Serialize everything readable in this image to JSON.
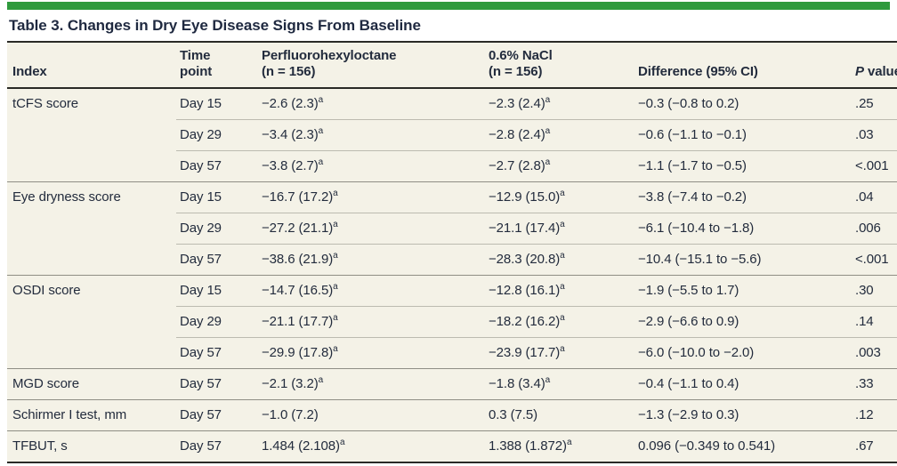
{
  "title": "Table 3. Changes in Dry Eye Disease Signs From Baseline",
  "colors": {
    "accent_green": "#2f9a3d",
    "table_background": "#f4f2e7",
    "dark_rule": "#2a2a26",
    "text": "#232c3d",
    "row_line": "#bcbbb0",
    "group_line": "#8f8e85"
  },
  "table": {
    "columns": [
      {
        "id": "index",
        "label": "Index"
      },
      {
        "id": "time",
        "label": "Time\npoint"
      },
      {
        "id": "pfho",
        "label": "Perfluorohexyloctane\n(n = 156)"
      },
      {
        "id": "nacl",
        "label": "0.6% NaCl\n(n = 156)"
      },
      {
        "id": "diff",
        "label": "Difference (95% CI)"
      },
      {
        "id": "p",
        "label": "P value",
        "italic_first": true
      }
    ],
    "rows": [
      {
        "group_start": true,
        "index": "tCFS score",
        "time": "Day 15",
        "pfho": "−2.6 (2.3)",
        "pfho_sup": "a",
        "nacl": "−2.3 (2.4)",
        "nacl_sup": "a",
        "diff": "−0.3 (−0.8 to 0.2)",
        "p": ".25"
      },
      {
        "group_start": false,
        "index": "",
        "time": "Day 29",
        "pfho": "−3.4 (2.3)",
        "pfho_sup": "a",
        "nacl": "−2.8 (2.4)",
        "nacl_sup": "a",
        "diff": "−0.6 (−1.1 to −0.1)",
        "p": ".03"
      },
      {
        "group_start": false,
        "index": "",
        "time": "Day 57",
        "pfho": "−3.8 (2.7)",
        "pfho_sup": "a",
        "nacl": "−2.7 (2.8)",
        "nacl_sup": "a",
        "diff": "−1.1 (−1.7 to −0.5)",
        "p": "<.001"
      },
      {
        "group_start": true,
        "index": "Eye dryness score",
        "time": "Day 15",
        "pfho": "−16.7 (17.2)",
        "pfho_sup": "a",
        "nacl": "−12.9 (15.0)",
        "nacl_sup": "a",
        "diff": "−3.8 (−7.4 to −0.2)",
        "p": ".04"
      },
      {
        "group_start": false,
        "index": "",
        "time": "Day 29",
        "pfho": "−27.2 (21.1)",
        "pfho_sup": "a",
        "nacl": "−21.1 (17.4)",
        "nacl_sup": "a",
        "diff": "−6.1 (−10.4 to −1.8)",
        "p": ".006"
      },
      {
        "group_start": false,
        "index": "",
        "time": "Day 57",
        "pfho": "−38.6 (21.9)",
        "pfho_sup": "a",
        "nacl": "−28.3 (20.8)",
        "nacl_sup": "a",
        "diff": "−10.4 (−15.1 to −5.6)",
        "p": "<.001"
      },
      {
        "group_start": true,
        "index": "OSDI score",
        "time": "Day 15",
        "pfho": "−14.7 (16.5)",
        "pfho_sup": "a",
        "nacl": "−12.8 (16.1)",
        "nacl_sup": "a",
        "diff": "−1.9 (−5.5 to 1.7)",
        "p": ".30"
      },
      {
        "group_start": false,
        "index": "",
        "time": "Day 29",
        "pfho": "−21.1 (17.7)",
        "pfho_sup": "a",
        "nacl": "−18.2 (16.2)",
        "nacl_sup": "a",
        "diff": "−2.9 (−6.6 to 0.9)",
        "p": ".14"
      },
      {
        "group_start": false,
        "index": "",
        "time": "Day 57",
        "pfho": "−29.9 (17.8)",
        "pfho_sup": "a",
        "nacl": "−23.9 (17.7)",
        "nacl_sup": "a",
        "diff": "−6.0 (−10.0 to −2.0)",
        "p": ".003"
      },
      {
        "group_start": true,
        "index": "MGD score",
        "time": "Day 57",
        "pfho": "−2.1 (3.2)",
        "pfho_sup": "a",
        "nacl": "−1.8 (3.4)",
        "nacl_sup": "a",
        "diff": "−0.4 (−1.1 to 0.4)",
        "p": ".33"
      },
      {
        "group_start": true,
        "index": "Schirmer I test, mm",
        "time": "Day 57",
        "pfho": "−1.0 (7.2)",
        "nacl": "0.3 (7.5)",
        "diff": "−1.3 (−2.9 to 0.3)",
        "p": ".12"
      },
      {
        "group_start": true,
        "index": "TFBUT, s",
        "time": "Day 57",
        "pfho": "1.484 (2.108)",
        "pfho_sup": "a",
        "nacl": "1.388 (1.872)",
        "nacl_sup": "a",
        "diff": "0.096 (−0.349 to 0.541)",
        "p": ".67"
      }
    ]
  }
}
